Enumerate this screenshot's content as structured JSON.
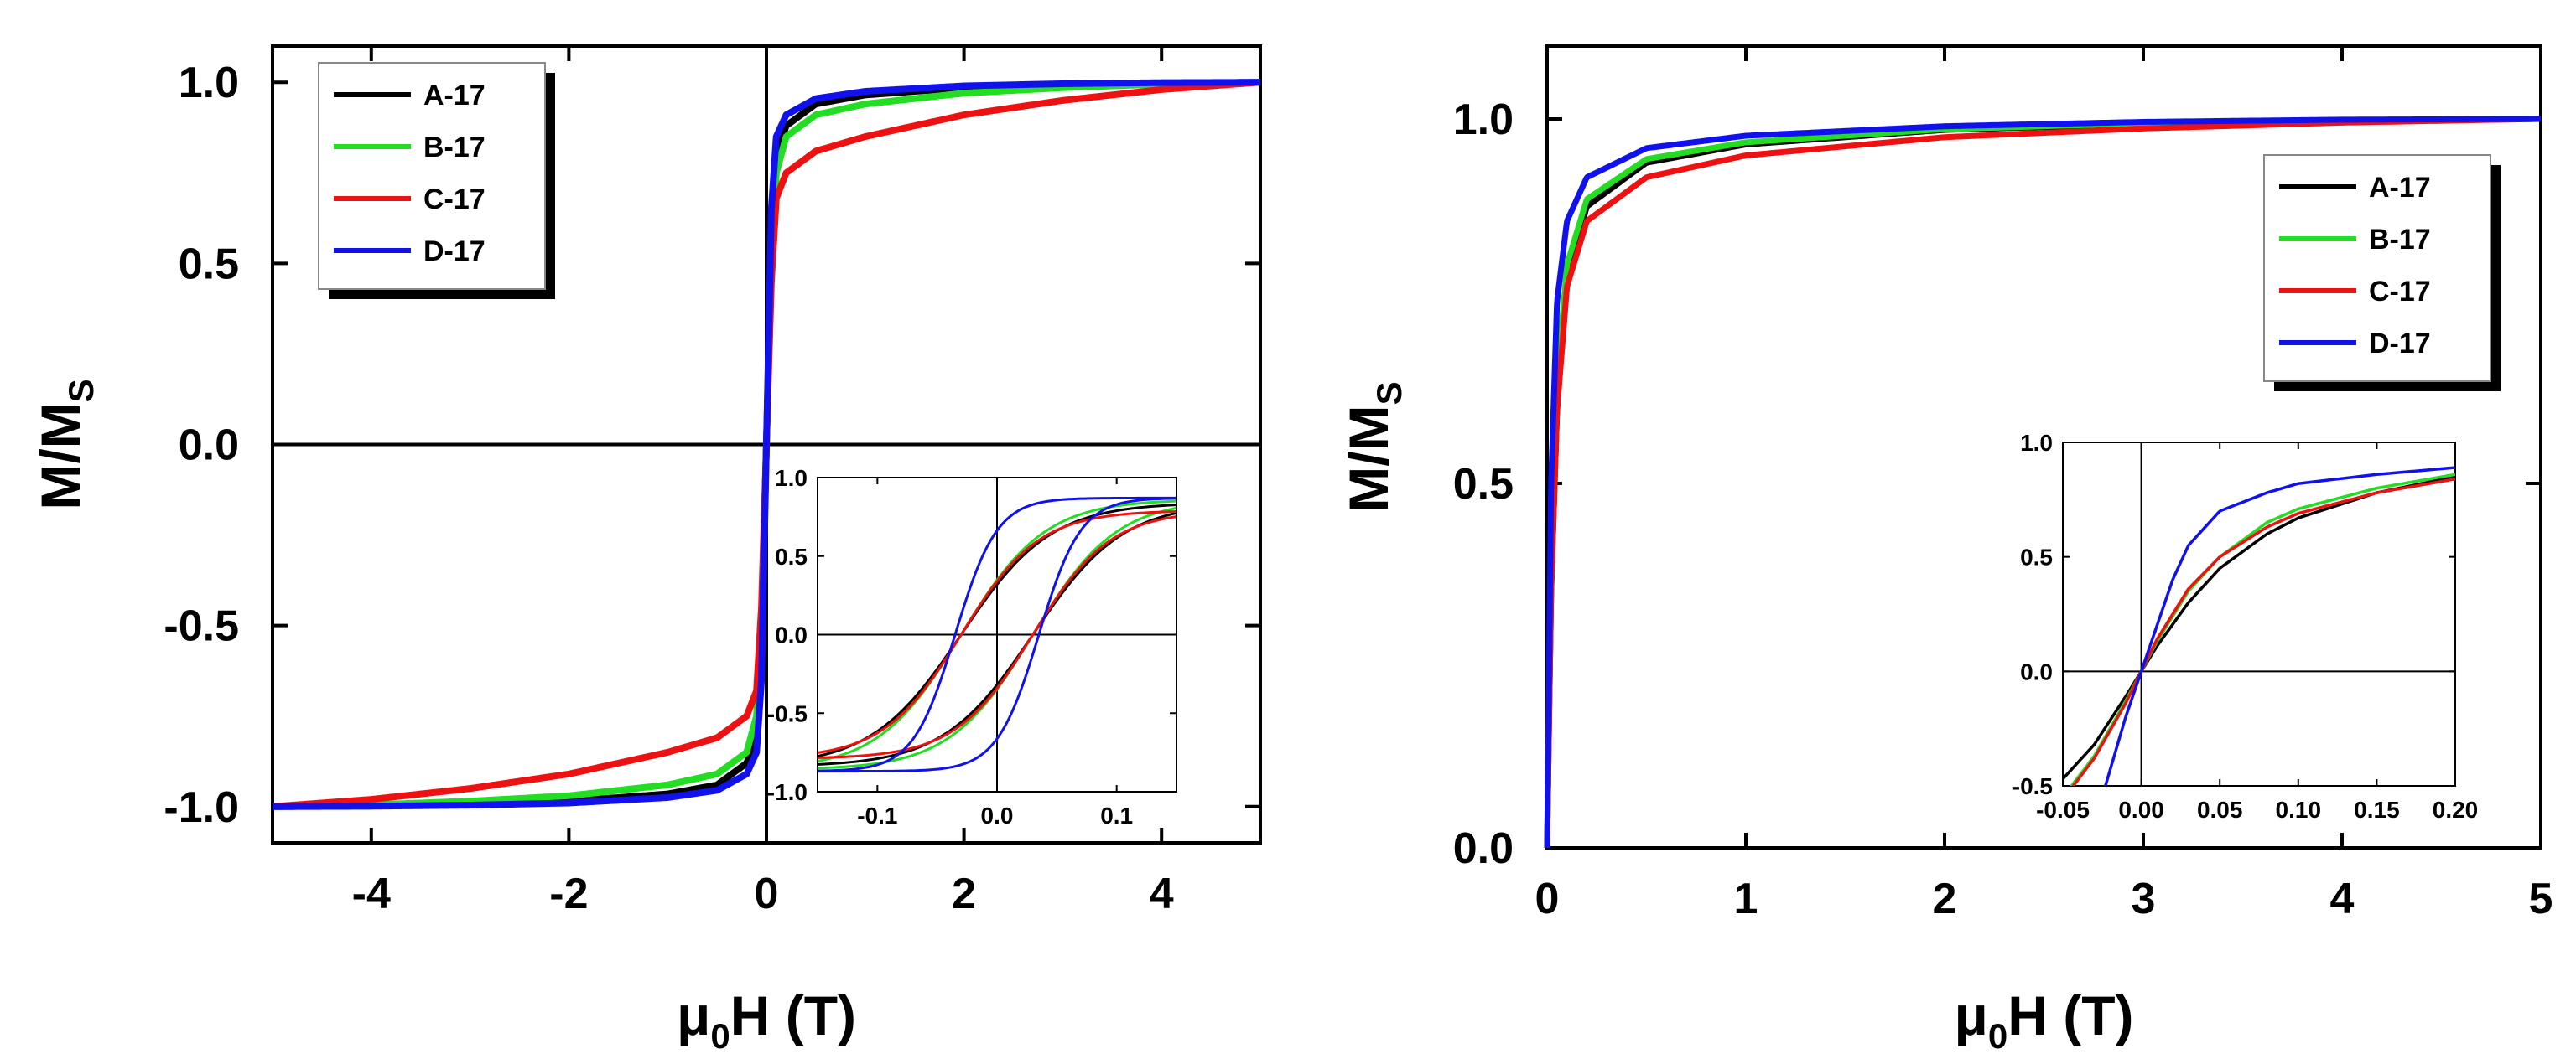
{
  "colors": {
    "A-17": "#000000",
    "B-17": "#22dd22",
    "C-17": "#ee1111",
    "D-17": "#1111ee"
  },
  "chart_data": [
    {
      "id": "left",
      "type": "line",
      "title": "",
      "xlabel": "μ0H (T)",
      "ylabel": "M/MS",
      "xlim": [
        -5,
        5
      ],
      "ylim": [
        -1.1,
        1.1
      ],
      "xticks": [
        -4,
        -2,
        0,
        2,
        4
      ],
      "xtick_labels": [
        "-4",
        "-2",
        "0",
        "2",
        "4"
      ],
      "yticks": [
        -1.0,
        -0.5,
        0.0,
        0.5,
        1.0
      ],
      "ytick_labels": [
        "-1.0",
        "-0.5",
        "0.0",
        "0.5",
        "1.0"
      ],
      "legend": {
        "entries": [
          "A-17",
          "B-17",
          "C-17",
          "D-17"
        ],
        "placement": "top-left"
      },
      "series": [
        {
          "name": "A-17",
          "x": [
            0,
            0.05,
            0.1,
            0.2,
            0.5,
            1,
            2,
            3,
            4,
            5
          ],
          "y": [
            0,
            0.55,
            0.8,
            0.88,
            0.94,
            0.965,
            0.985,
            0.993,
            0.998,
            1.0
          ]
        },
        {
          "name": "B-17",
          "x": [
            0,
            0.05,
            0.1,
            0.2,
            0.5,
            1,
            2,
            3,
            4,
            5
          ],
          "y": [
            0,
            0.5,
            0.75,
            0.85,
            0.91,
            0.94,
            0.97,
            0.985,
            0.995,
            1.0
          ]
        },
        {
          "name": "C-17",
          "x": [
            0,
            0.05,
            0.1,
            0.2,
            0.5,
            1,
            2,
            3,
            4,
            5
          ],
          "y": [
            0,
            0.45,
            0.68,
            0.75,
            0.81,
            0.85,
            0.91,
            0.95,
            0.98,
            1.0
          ]
        },
        {
          "name": "D-17",
          "x": [
            0,
            0.05,
            0.1,
            0.2,
            0.5,
            1,
            2,
            3,
            4,
            5
          ],
          "y": [
            0,
            0.65,
            0.85,
            0.91,
            0.955,
            0.975,
            0.99,
            0.996,
            0.999,
            1.0
          ]
        }
      ],
      "inset": {
        "xlim": [
          -0.15,
          0.15
        ],
        "ylim": [
          -1.0,
          1.0
        ],
        "xticks": [
          -0.1,
          0.0,
          0.1
        ],
        "xtick_labels": [
          "-0.1",
          "0.0",
          "0.1"
        ],
        "yticks": [
          -1.0,
          -0.5,
          0.0,
          0.5,
          1.0
        ],
        "ytick_labels": [
          "-1.0",
          "-0.5",
          "0.0",
          "0.5",
          "1.0"
        ],
        "series": [
          {
            "name": "A-17",
            "coercivity": 0.03,
            "saturation": 0.84,
            "width": 0.075
          },
          {
            "name": "B-17",
            "coercivity": 0.03,
            "saturation": 0.86,
            "width": 0.07
          },
          {
            "name": "C-17",
            "coercivity": 0.03,
            "saturation": 0.79,
            "width": 0.065
          },
          {
            "name": "D-17",
            "coercivity": 0.035,
            "saturation": 0.87,
            "width": 0.035
          }
        ]
      }
    },
    {
      "id": "right",
      "type": "line",
      "title": "",
      "xlabel": "μ0H (T)",
      "ylabel": "M/MS",
      "xlim": [
        0,
        5
      ],
      "ylim": [
        0,
        1.1
      ],
      "xticks": [
        0,
        1,
        2,
        3,
        4,
        5
      ],
      "xtick_labels": [
        "0",
        "1",
        "2",
        "3",
        "4",
        "5"
      ],
      "yticks": [
        0.0,
        0.5,
        1.0
      ],
      "ytick_labels": [
        "0.0",
        "0.5",
        "1.0"
      ],
      "legend": {
        "entries": [
          "A-17",
          "B-17",
          "C-17",
          "D-17"
        ],
        "placement": "top-right"
      },
      "series": [
        {
          "name": "A-17",
          "x": [
            0,
            0.02,
            0.05,
            0.1,
            0.2,
            0.5,
            1,
            2,
            3,
            4,
            5
          ],
          "y": [
            0,
            0.35,
            0.6,
            0.78,
            0.88,
            0.94,
            0.965,
            0.985,
            0.993,
            0.998,
            1.0
          ]
        },
        {
          "name": "B-17",
          "x": [
            0,
            0.02,
            0.05,
            0.1,
            0.2,
            0.5,
            1,
            2,
            3,
            4,
            5
          ],
          "y": [
            0,
            0.38,
            0.64,
            0.8,
            0.89,
            0.945,
            0.968,
            0.986,
            0.994,
            0.998,
            1.0
          ]
        },
        {
          "name": "C-17",
          "x": [
            0,
            0.02,
            0.05,
            0.1,
            0.2,
            0.5,
            1,
            2,
            3,
            4,
            5
          ],
          "y": [
            0,
            0.35,
            0.6,
            0.77,
            0.86,
            0.92,
            0.95,
            0.975,
            0.987,
            0.995,
            1.0
          ]
        },
        {
          "name": "D-17",
          "x": [
            0,
            0.02,
            0.05,
            0.1,
            0.2,
            0.5,
            1,
            2,
            3,
            4,
            5
          ],
          "y": [
            0,
            0.5,
            0.75,
            0.86,
            0.92,
            0.96,
            0.977,
            0.99,
            0.996,
            0.999,
            1.0
          ]
        }
      ],
      "inset": {
        "xlim": [
          -0.05,
          0.2
        ],
        "ylim": [
          -0.5,
          1.0
        ],
        "xticks": [
          -0.05,
          0.0,
          0.05,
          0.1,
          0.15,
          0.2
        ],
        "xtick_labels": [
          "-0.05",
          "0.00",
          "0.05",
          "0.10",
          "0.15",
          "0.20"
        ],
        "yticks": [
          -0.5,
          0.0,
          0.5,
          1.0
        ],
        "ytick_labels": [
          "-0.5",
          "0.0",
          "0.5",
          "1.0"
        ],
        "series": [
          {
            "name": "A-17",
            "x": [
              -0.05,
              -0.03,
              -0.01,
              0,
              0.01,
              0.03,
              0.05,
              0.08,
              0.1,
              0.15,
              0.2
            ],
            "y": [
              -0.47,
              -0.32,
              -0.11,
              0.0,
              0.11,
              0.3,
              0.45,
              0.6,
              0.67,
              0.78,
              0.85
            ]
          },
          {
            "name": "B-17",
            "x": [
              -0.05,
              -0.03,
              -0.01,
              0,
              0.01,
              0.03,
              0.05,
              0.08,
              0.1,
              0.15,
              0.2
            ],
            "y": [
              -0.55,
              -0.37,
              -0.13,
              0.0,
              0.13,
              0.35,
              0.5,
              0.65,
              0.71,
              0.8,
              0.86
            ]
          },
          {
            "name": "C-17",
            "x": [
              -0.05,
              -0.03,
              -0.01,
              0,
              0.01,
              0.03,
              0.05,
              0.08,
              0.1,
              0.15,
              0.2
            ],
            "y": [
              -0.56,
              -0.38,
              -0.14,
              0.0,
              0.14,
              0.36,
              0.5,
              0.63,
              0.69,
              0.78,
              0.84
            ]
          },
          {
            "name": "D-17",
            "x": [
              -0.025,
              -0.01,
              0,
              0.01,
              0.02,
              0.03,
              0.05,
              0.08,
              0.1,
              0.15,
              0.2
            ],
            "y": [
              -0.55,
              -0.2,
              0.0,
              0.2,
              0.4,
              0.55,
              0.7,
              0.78,
              0.82,
              0.86,
              0.89
            ]
          }
        ]
      }
    }
  ]
}
